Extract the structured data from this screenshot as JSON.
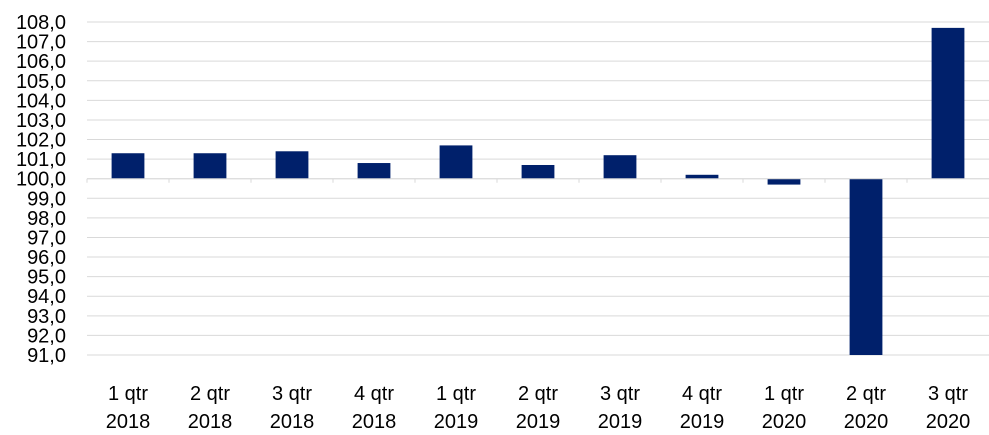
{
  "chart_data": {
    "type": "bar",
    "title": "",
    "xlabel": "",
    "ylabel": "",
    "ylim": [
      91.0,
      108.0
    ],
    "ytick_step": 1.0,
    "baseline_value": 100.0,
    "grid": true,
    "bar_color": "#00206b",
    "categories": [
      [
        "1 qtr",
        "2018"
      ],
      [
        "2 qtr",
        "2018"
      ],
      [
        "3 qtr",
        "2018"
      ],
      [
        "4 qtr",
        "2018"
      ],
      [
        "1 qtr",
        "2019"
      ],
      [
        "2 qtr",
        "2019"
      ],
      [
        "3 qtr",
        "2019"
      ],
      [
        "4 qtr",
        "2019"
      ],
      [
        "1 qtr",
        "2020"
      ],
      [
        "2 qtr",
        "2020"
      ],
      [
        "3 qtr",
        "2020"
      ]
    ],
    "values": [
      101.3,
      101.3,
      101.4,
      100.8,
      101.7,
      100.7,
      101.2,
      100.2,
      99.7,
      91.0,
      107.7
    ],
    "yticks": [
      "91,0",
      "92,0",
      "93,0",
      "94,0",
      "95,0",
      "96,0",
      "97,0",
      "98,0",
      "99,0",
      "100,0",
      "101,0",
      "102,0",
      "103,0",
      "104,0",
      "105,0",
      "106,0",
      "107,0",
      "108,0"
    ]
  }
}
